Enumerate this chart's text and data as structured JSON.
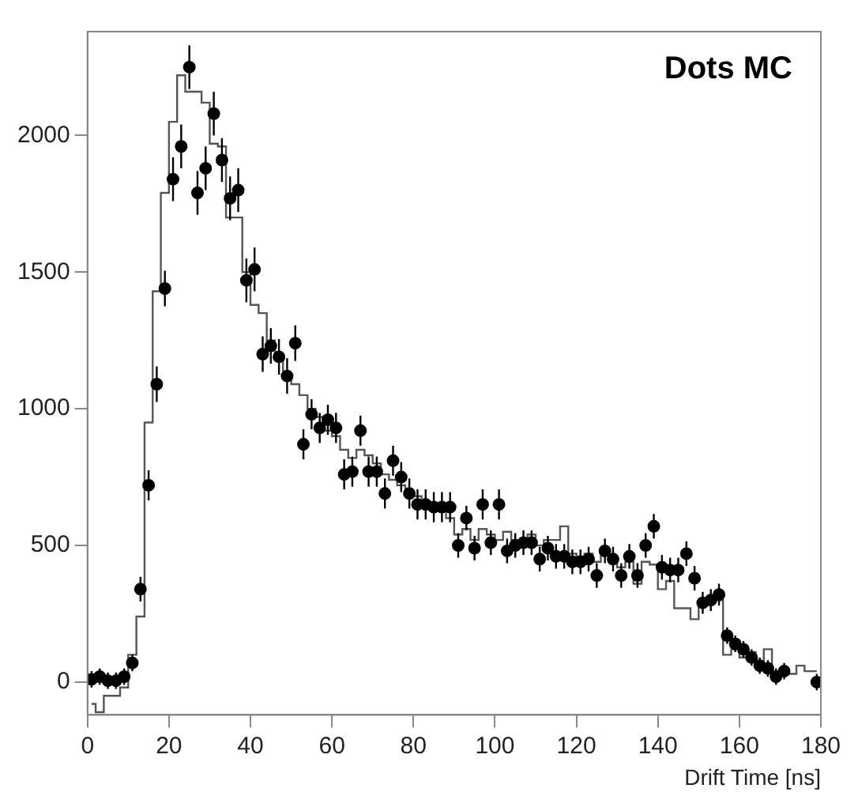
{
  "chart_data": {
    "type": "scatter",
    "xlabel": "Drift Time [ns]",
    "annotations": [
      "Dots MC"
    ],
    "xlim": [
      0,
      180
    ],
    "xticks": [
      0,
      20,
      40,
      60,
      80,
      100,
      120,
      140,
      160,
      180
    ],
    "ylim": [
      -120,
      2380
    ],
    "yticks": [
      0,
      500,
      1000,
      1500,
      2000
    ],
    "series": [
      {
        "marker": "circle",
        "color": "#000000",
        "x": [
          1,
          3,
          5,
          7,
          9,
          11,
          13,
          15,
          17,
          19,
          21,
          23,
          25,
          27,
          29,
          31,
          33,
          35,
          37,
          39,
          41,
          43,
          45,
          47,
          49,
          51,
          53,
          55,
          57,
          59,
          61,
          63,
          65,
          67,
          69,
          71,
          73,
          75,
          77,
          79,
          81,
          83,
          85,
          87,
          89,
          91,
          93,
          95,
          97,
          99,
          101,
          103,
          105,
          107,
          109,
          111,
          113,
          115,
          117,
          119,
          121,
          123,
          125,
          127,
          129,
          131,
          133,
          135,
          137,
          139,
          141,
          143,
          145,
          147,
          149,
          151,
          153,
          155,
          157,
          159,
          161,
          163,
          165,
          167,
          169,
          171,
          179
        ],
        "values": [
          10,
          20,
          5,
          5,
          20,
          70,
          340,
          720,
          1090,
          1440,
          1840,
          1960,
          2250,
          1790,
          1880,
          2080,
          1910,
          1770,
          1800,
          1470,
          1510,
          1200,
          1230,
          1190,
          1120,
          1240,
          870,
          980,
          930,
          960,
          930,
          760,
          770,
          920,
          770,
          770,
          690,
          810,
          750,
          690,
          650,
          650,
          640,
          640,
          640,
          500,
          600,
          490,
          650,
          510,
          650,
          480,
          500,
          510,
          510,
          450,
          490,
          460,
          460,
          440,
          440,
          450,
          390,
          480,
          450,
          390,
          460,
          390,
          500,
          570,
          420,
          410,
          410,
          470,
          380,
          290,
          300,
          320,
          170,
          140,
          120,
          90,
          60,
          50,
          20,
          40,
          0
        ],
        "errors": [
          30,
          30,
          30,
          30,
          30,
          30,
          45,
          55,
          65,
          65,
          80,
          80,
          80,
          80,
          80,
          80,
          80,
          80,
          80,
          80,
          80,
          65,
          65,
          65,
          65,
          65,
          55,
          55,
          55,
          55,
          55,
          55,
          55,
          55,
          55,
          55,
          55,
          55,
          55,
          55,
          55,
          55,
          55,
          55,
          55,
          45,
          45,
          45,
          55,
          45,
          55,
          45,
          45,
          45,
          45,
          45,
          45,
          45,
          45,
          45,
          45,
          45,
          45,
          45,
          45,
          45,
          45,
          45,
          45,
          45,
          45,
          45,
          45,
          45,
          45,
          40,
          40,
          40,
          30,
          30,
          30,
          30,
          30,
          30,
          30,
          30,
          30
        ]
      },
      {
        "type": "step",
        "color": "#555555",
        "x": [
          1,
          3,
          5,
          7,
          9,
          11,
          13,
          15,
          17,
          19,
          21,
          23,
          25,
          27,
          29,
          31,
          33,
          35,
          37,
          39,
          41,
          43,
          45,
          47,
          49,
          51,
          53,
          55,
          57,
          59,
          61,
          63,
          65,
          67,
          69,
          71,
          73,
          75,
          77,
          79,
          81,
          83,
          85,
          87,
          89,
          91,
          93,
          95,
          97,
          99,
          101,
          103,
          105,
          107,
          109,
          111,
          113,
          115,
          117,
          119,
          121,
          123,
          125,
          127,
          129,
          131,
          133,
          135,
          137,
          139,
          141,
          143,
          145,
          147,
          149,
          151,
          153,
          155,
          157,
          159,
          161,
          163,
          165,
          167,
          169,
          171,
          173,
          175,
          177,
          179
        ],
        "values": [
          -80,
          -110,
          -50,
          -50,
          -20,
          100,
          240,
          950,
          1430,
          1790,
          2050,
          2220,
          2160,
          2160,
          2120,
          1970,
          1960,
          1700,
          1700,
          1500,
          1380,
          1350,
          1250,
          1200,
          1130,
          1090,
          1050,
          1000,
          970,
          920,
          900,
          850,
          820,
          850,
          830,
          800,
          760,
          740,
          720,
          700,
          680,
          660,
          640,
          630,
          600,
          540,
          560,
          520,
          560,
          540,
          520,
          550,
          520,
          520,
          540,
          500,
          520,
          520,
          570,
          470,
          460,
          470,
          440,
          480,
          440,
          420,
          440,
          360,
          440,
          430,
          340,
          370,
          270,
          270,
          230,
          290,
          290,
          300,
          100,
          120,
          90,
          110,
          60,
          120,
          30,
          40,
          30,
          60,
          40,
          40
        ]
      }
    ]
  }
}
